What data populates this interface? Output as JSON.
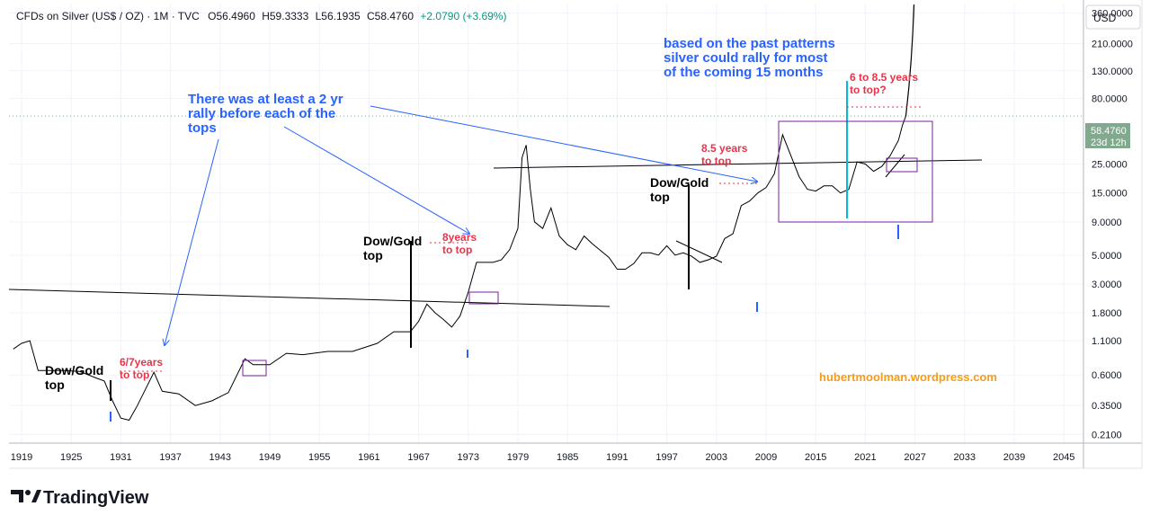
{
  "header": {
    "title": "CFDs on Silver (US$ / OZ) · 1M · TVC",
    "open": "O56.4960",
    "high": "H59.3333",
    "low": "L56.1935",
    "close": "C58.4760",
    "change": "+2.0790 (+3.69%)"
  },
  "currency_button": "USD",
  "price_badge": {
    "price": "58.4760",
    "countdown": "23d 12h"
  },
  "brand": "TradingView",
  "watermark": "hubertmoolman.wordpress.com",
  "annotations": {
    "rally_note": [
      "There was at least a 2 yr",
      "rally before each of the",
      "tops"
    ],
    "pattern_note": [
      "based on the past patterns",
      "silver could rally for most",
      "of the coming 15 months"
    ],
    "top_1931": [
      "6/7years",
      "to top"
    ],
    "top_1973": [
      "8years",
      "to top"
    ],
    "top_2009": [
      "8.5 years",
      "to top"
    ],
    "top_future": [
      "6 to 8.5 years",
      "to top?"
    ],
    "dow_gold_1": [
      "Dow/Gold",
      "top"
    ],
    "dow_gold_2": [
      "Dow/Gold",
      "top"
    ],
    "dow_gold_3": [
      "Dow/Gold",
      "top"
    ]
  },
  "colors": {
    "price_line": "#000000",
    "accent_blue": "#2962ff",
    "accent_red": "#e8334a",
    "cyan": "#00bcd4",
    "box_purple": "#7b1fa2",
    "watermark": "#f59c1a",
    "badge_green": "#80a98e"
  },
  "chart_data": {
    "type": "line",
    "title": "CFDs on Silver (US$ / OZ) · 1M · TVC",
    "y_scale": "log",
    "ylim": [
      0.18,
      420
    ],
    "xlim": [
      1918,
      2048
    ],
    "y_ticks": [
      "360.0000",
      "210.0000",
      "130.0000",
      "80.0000",
      "25.0000",
      "15.0000",
      "9.0000",
      "5.0000",
      "3.0000",
      "1.8000",
      "1.1000",
      "0.6000",
      "0.3500",
      "0.2100"
    ],
    "y_tick_values": [
      360,
      210,
      130,
      80,
      25,
      15,
      9,
      5,
      3,
      1.8,
      1.1,
      0.6,
      0.35,
      0.21
    ],
    "x_ticks": [
      "1919",
      "1925",
      "1931",
      "1937",
      "1943",
      "1949",
      "1955",
      "1961",
      "1967",
      "1973",
      "1979",
      "1985",
      "1991",
      "1997",
      "2003",
      "2009",
      "2015",
      "2021",
      "2027",
      "2033",
      "2039",
      "2045"
    ],
    "x_tick_values": [
      1919,
      1925,
      1931,
      1937,
      1943,
      1949,
      1955,
      1961,
      1967,
      1973,
      1979,
      1985,
      1991,
      1997,
      2003,
      2009,
      2015,
      2021,
      2027,
      2033,
      2039,
      2045
    ],
    "series": [
      {
        "x": [
          1918,
          1919,
          1920,
          1921,
          1922,
          1924,
          1926,
          1928,
          1929,
          1930,
          1931,
          1932,
          1933,
          1935,
          1936,
          1938,
          1940,
          1942,
          1944,
          1946,
          1947,
          1949,
          1951,
          1953,
          1956,
          1959,
          1962,
          1964,
          1966,
          1967,
          1968,
          1969,
          1970,
          1971,
          1972,
          1973,
          1974,
          1975,
          1976,
          1977,
          1978,
          1979,
          1979.5,
          1980,
          1980.5,
          1981,
          1982,
          1983,
          1984,
          1985,
          1986,
          1987,
          1988,
          1990,
          1991,
          1992,
          1993,
          1994,
          1995,
          1996,
          1997,
          1998,
          1999,
          2000,
          2001,
          2002,
          2003,
          2004,
          2005,
          2006,
          2007,
          2008,
          2009,
          2010,
          2011,
          2012,
          2013,
          2014,
          2015,
          2016,
          2017,
          2018,
          2019,
          2020,
          2021,
          2022,
          2023,
          2024,
          2025,
          2025.5,
          2025.9
        ],
        "values": [
          0.95,
          1.05,
          1.1,
          0.65,
          0.65,
          0.65,
          0.64,
          0.57,
          0.54,
          0.38,
          0.28,
          0.27,
          0.35,
          0.63,
          0.45,
          0.43,
          0.35,
          0.38,
          0.44,
          0.8,
          0.72,
          0.72,
          0.88,
          0.86,
          0.91,
          0.91,
          1.05,
          1.29,
          1.29,
          1.55,
          2.1,
          1.8,
          1.6,
          1.4,
          1.7,
          2.6,
          4.4,
          4.4,
          4.4,
          4.6,
          5.5,
          8,
          28,
          35,
          16,
          9,
          8,
          11.5,
          7,
          6,
          5.5,
          7,
          6.1,
          4.8,
          3.9,
          3.9,
          4.3,
          5.2,
          5.2,
          5,
          5.9,
          5,
          5.2,
          4.9,
          4.4,
          4.6,
          4.9,
          6.7,
          7.3,
          12,
          13,
          15,
          16.5,
          21,
          42,
          29,
          20,
          16,
          15.5,
          17,
          17,
          15,
          16,
          26,
          25,
          22,
          24,
          29,
          38,
          50,
          58.476
        ]
      }
    ]
  }
}
